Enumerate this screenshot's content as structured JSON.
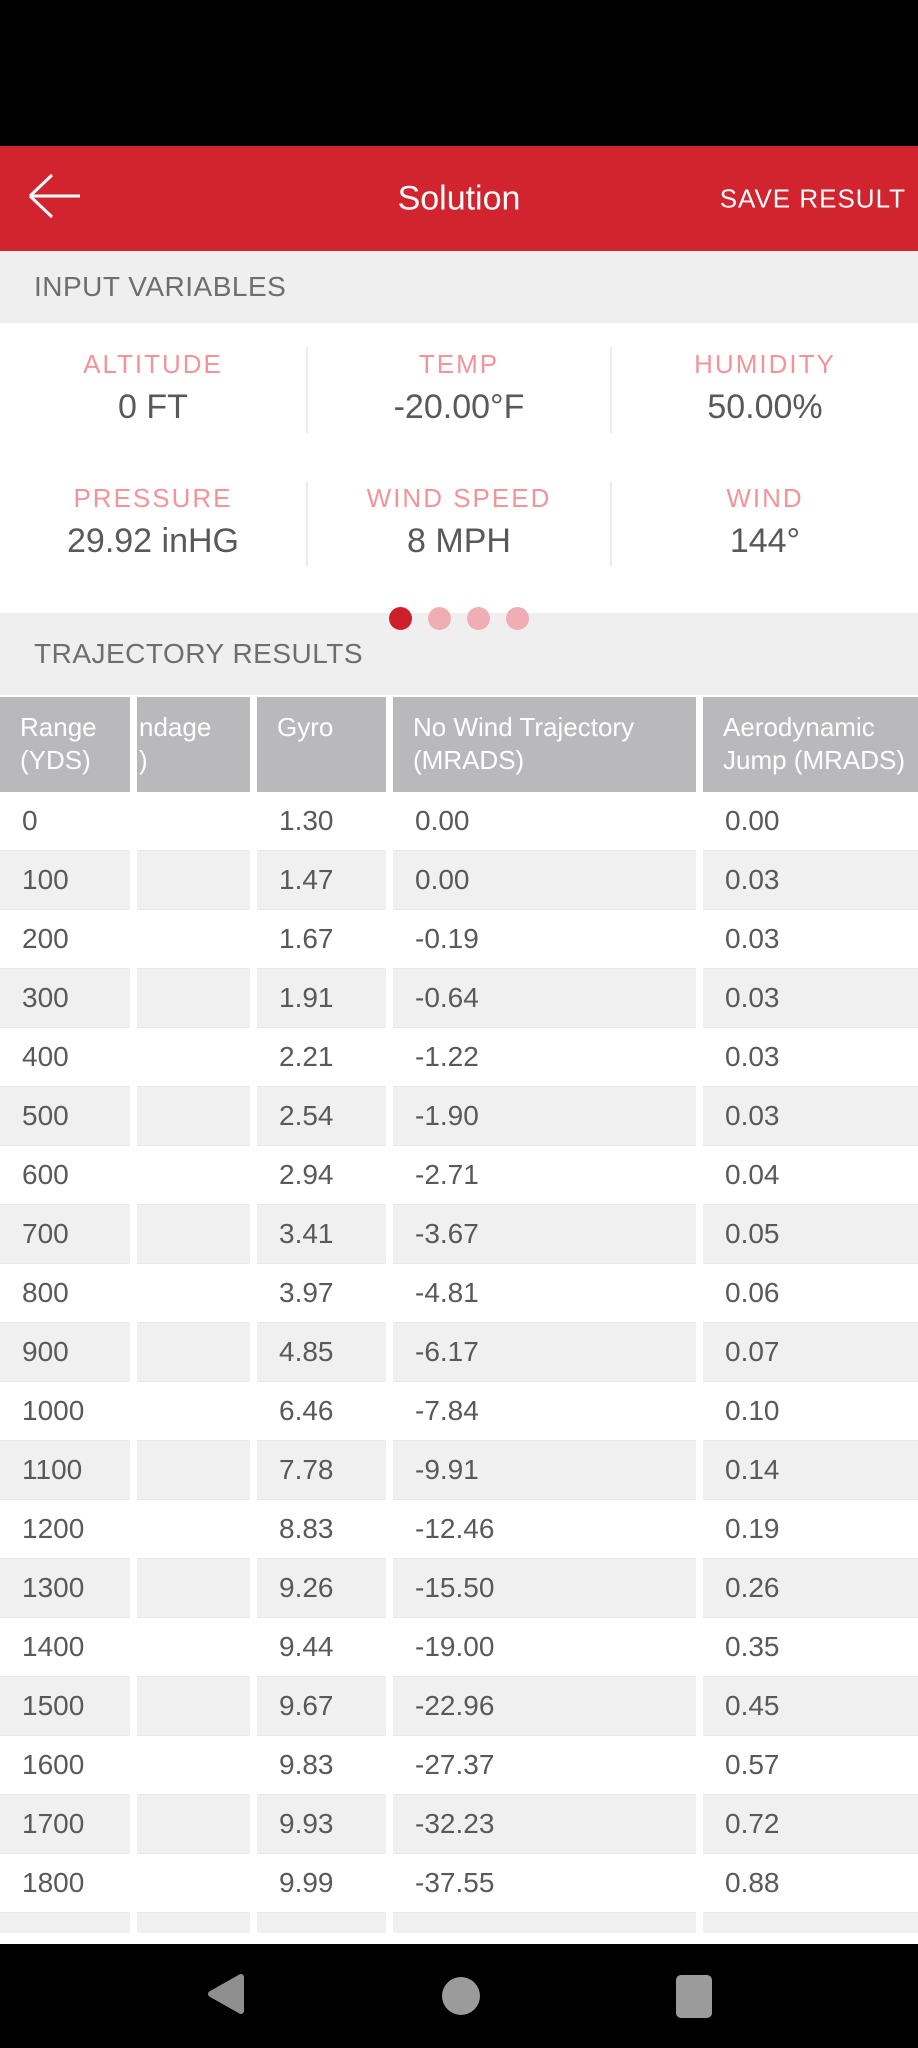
{
  "header": {
    "title": "Solution",
    "save_button": "SAVE RESULT",
    "back_icon": "arrow-left"
  },
  "input_variables": {
    "section_title": "INPUT VARIABLES",
    "fields": [
      {
        "label": "ALTITUDE",
        "value": "0 FT"
      },
      {
        "label": "TEMP",
        "value": "-20.00°F"
      },
      {
        "label": "HUMIDITY",
        "value": "50.00%"
      },
      {
        "label": "PRESSURE",
        "value": "29.92 inHG"
      },
      {
        "label": "WIND SPEED",
        "value": "8 MPH"
      },
      {
        "label": "WIND",
        "value": "144°"
      }
    ],
    "pager": {
      "count": 4,
      "active_index": 0
    }
  },
  "trajectory": {
    "section_title": "TRAJECTORY RESULTS",
    "columns": [
      {
        "line1": "Range",
        "line2": "(YDS)"
      },
      {
        "line1": "ndage",
        "line2": ")"
      },
      {
        "line1": "Gyro",
        "line2": ""
      },
      {
        "line1": "No Wind Trajectory",
        "line2": "(MRADS)"
      },
      {
        "line1": "Aerodynamic",
        "line2": "Jump (MRADS)"
      }
    ],
    "rows": [
      [
        "0",
        "",
        "1.30",
        "0.00",
        "0.00"
      ],
      [
        "100",
        "",
        "1.47",
        "0.00",
        "0.03"
      ],
      [
        "200",
        "",
        "1.67",
        "-0.19",
        "0.03"
      ],
      [
        "300",
        "",
        "1.91",
        "-0.64",
        "0.03"
      ],
      [
        "400",
        "",
        "2.21",
        "-1.22",
        "0.03"
      ],
      [
        "500",
        "",
        "2.54",
        "-1.90",
        "0.03"
      ],
      [
        "600",
        "",
        "2.94",
        "-2.71",
        "0.04"
      ],
      [
        "700",
        "",
        "3.41",
        "-3.67",
        "0.05"
      ],
      [
        "800",
        "",
        "3.97",
        "-4.81",
        "0.06"
      ],
      [
        "900",
        "",
        "4.85",
        "-6.17",
        "0.07"
      ],
      [
        "1000",
        "",
        "6.46",
        "-7.84",
        "0.10"
      ],
      [
        "1100",
        "",
        "7.78",
        "-9.91",
        "0.14"
      ],
      [
        "1200",
        "",
        "8.83",
        "-12.46",
        "0.19"
      ],
      [
        "1300",
        "",
        "9.26",
        "-15.50",
        "0.26"
      ],
      [
        "1400",
        "",
        "9.44",
        "-19.00",
        "0.35"
      ],
      [
        "1500",
        "",
        "9.67",
        "-22.96",
        "0.45"
      ],
      [
        "1600",
        "",
        "9.83",
        "-27.37",
        "0.57"
      ],
      [
        "1700",
        "",
        "9.93",
        "-32.23",
        "0.72"
      ],
      [
        "1800",
        "",
        "9.99",
        "-37.55",
        "0.88"
      ]
    ]
  },
  "nav_bar": {
    "icons": [
      "back-triangle",
      "home-circle",
      "recents-square"
    ]
  },
  "colors": {
    "accent_red": "#D2242E",
    "dot_active": "#CE202C",
    "dot_inactive": "#F0ADB3",
    "label_pink": "#F2949A",
    "value_gray": "#58595B",
    "table_header_gray": "#B9B9BB",
    "row_alt_gray": "#F0F0F1",
    "section_bg": "#EFEFEF"
  }
}
